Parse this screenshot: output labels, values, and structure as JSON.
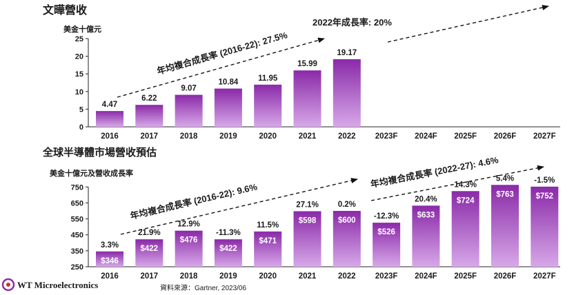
{
  "chart_data": [
    {
      "type": "bar",
      "title": "文曄營收",
      "ylabel": "美金十億元",
      "xlabel": "",
      "categories": [
        "2016",
        "2017",
        "2018",
        "2019",
        "2020",
        "2021",
        "2022",
        "2023F",
        "2024F",
        "2025F",
        "2026F",
        "2027F"
      ],
      "values": [
        4.47,
        6.22,
        9.07,
        10.84,
        11.95,
        15.99,
        19.17,
        null,
        null,
        null,
        null,
        null
      ],
      "value_labels": [
        "4.47",
        "6.22",
        "9.07",
        "10.84",
        "11.95",
        "15.99",
        "19.17",
        "",
        "",
        "",
        "",
        ""
      ],
      "ylim": [
        0,
        25
      ],
      "yticks": [
        0,
        5,
        10,
        15,
        20,
        25
      ],
      "ytick_labels": [
        "0",
        "5",
        "10",
        "15",
        "20",
        "25"
      ],
      "annotations": [
        {
          "id": "cagr1",
          "text": "年均複合成長率 (2016-22): 27.5%"
        },
        {
          "id": "cagr2",
          "text": "2022年成長率: 20%"
        }
      ]
    },
    {
      "type": "bar",
      "title": "全球半導體市場營收預估",
      "ylabel": "美金十億元及營收成長率",
      "xlabel": "",
      "categories": [
        "2016",
        "2017",
        "2018",
        "2019",
        "2020",
        "2021",
        "2022",
        "2023F",
        "2024F",
        "2025F",
        "2026F",
        "2027F"
      ],
      "values": [
        346,
        422,
        476,
        422,
        471,
        598,
        600,
        526,
        633,
        724,
        763,
        752
      ],
      "value_labels": [
        "$346",
        "$422",
        "$476",
        "$422",
        "$471",
        "$598",
        "$600",
        "$526",
        "$633",
        "$724",
        "$763",
        "$752"
      ],
      "growth_labels": [
        "3.3%",
        "21.9%",
        "12.9%",
        "-11.3%",
        "11.5%",
        "27.1%",
        "0.2%",
        "-12.3%",
        "20.4%",
        "14.3%",
        "5.4%",
        "-1.5%"
      ],
      "ylim": [
        250,
        790
      ],
      "yticks": [
        250,
        350,
        450,
        550,
        650,
        750
      ],
      "ytick_labels": [
        "250",
        "350",
        "450",
        "550",
        "650",
        "750"
      ],
      "annotations": [
        {
          "id": "cagr1",
          "text": "年均複合成長率 (2016-22): 9.6%"
        },
        {
          "id": "cagr2",
          "text": "年均複合成長率 (2022-27): 4.6%"
        }
      ]
    }
  ],
  "footer": {
    "source": "資料來源：Gartner, 2023/06",
    "logo_text": "WT Microelectronics"
  },
  "colors": {
    "bar": "#8e2cab",
    "axis": "#222222"
  }
}
